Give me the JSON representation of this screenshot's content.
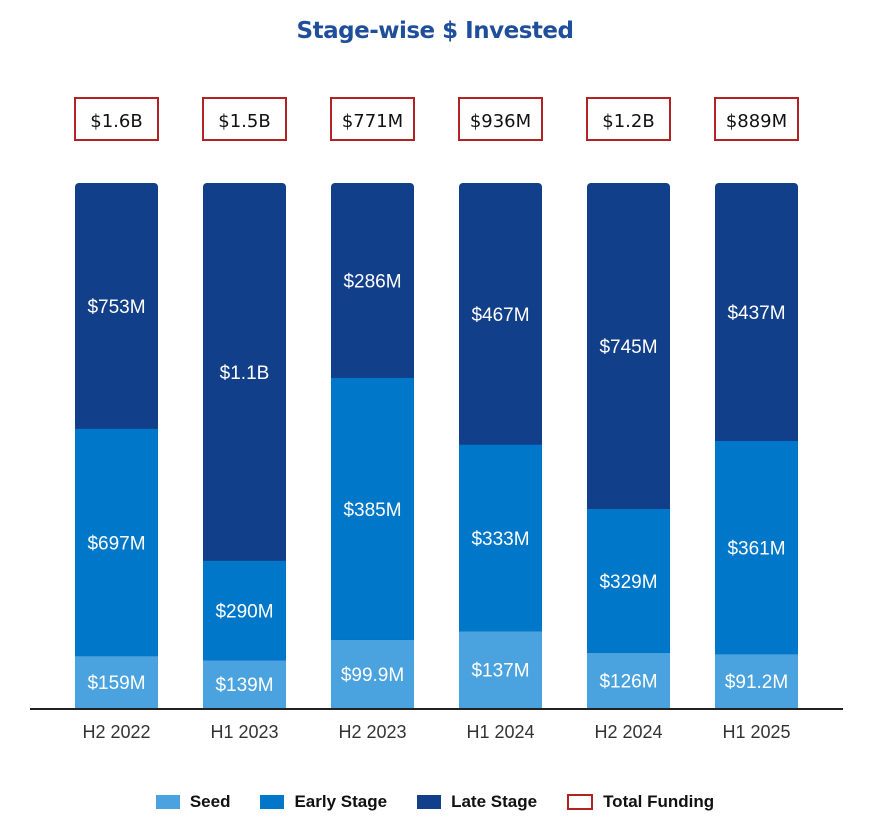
{
  "chart_data": {
    "type": "bar",
    "stacked": "percent",
    "title": "Stage-wise $ Invested",
    "categories": [
      "H2 2022",
      "H1 2023",
      "H2 2023",
      "H1 2024",
      "H2 2024",
      "H1 2025"
    ],
    "series": [
      {
        "name": "Seed",
        "color": "#4aa3df",
        "values": [
          159,
          139,
          99.9,
          137,
          126,
          91.2
        ],
        "labels": [
          "$159M",
          "$139M",
          "$99.9M",
          "$137M",
          "$126M",
          "$91.2M"
        ]
      },
      {
        "name": "Early Stage",
        "color": "#0077c8",
        "values": [
          697,
          290,
          385,
          333,
          329,
          361
        ],
        "labels": [
          "$697M",
          "$290M",
          "$385M",
          "$333M",
          "$329M",
          "$361M"
        ]
      },
      {
        "name": "Late Stage",
        "color": "#123f8a",
        "values": [
          753,
          1100,
          286,
          467,
          745,
          437
        ],
        "labels": [
          "$753M",
          "$1.1B",
          "$286M",
          "$467M",
          "$745M",
          "$437M"
        ]
      }
    ],
    "totals": {
      "name": "Total Funding",
      "color": "#b22222",
      "labels": [
        "$1.6B",
        "$1.5B",
        "$771M",
        "$936M",
        "$1.2B",
        "$889M"
      ]
    },
    "legend": "bottom",
    "grid": false
  }
}
